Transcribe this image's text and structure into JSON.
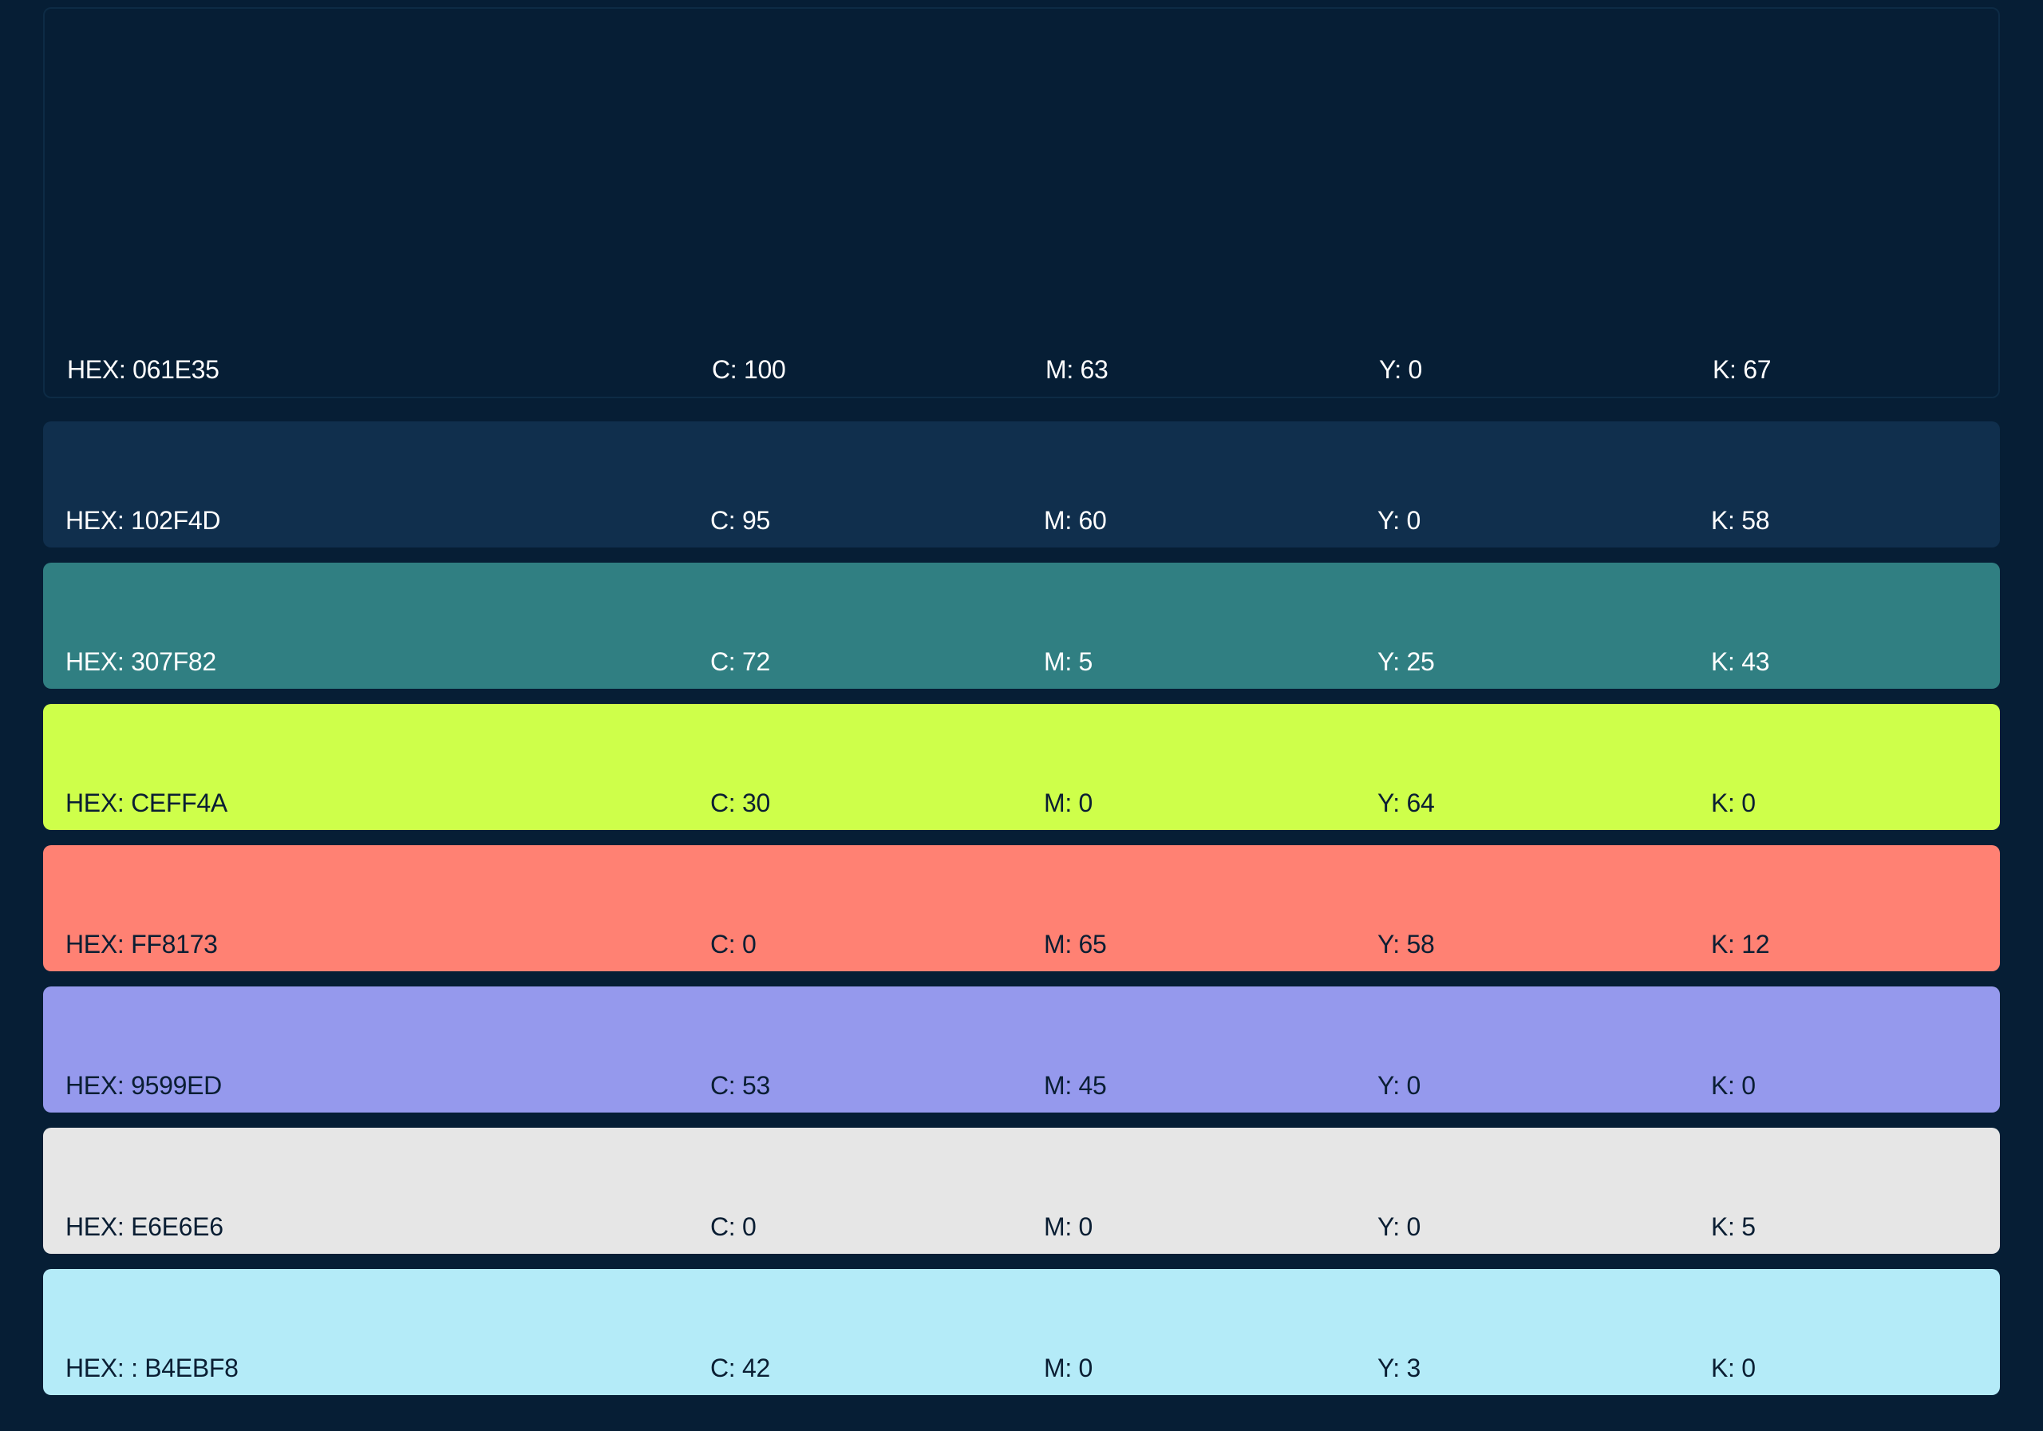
{
  "swatches": [
    {
      "color": "#061e35",
      "text_color": "#ffffff",
      "hex": "HEX: 061E35",
      "c": "C: 100",
      "m": "M: 63",
      "y": "Y: 0",
      "k": "K: 67"
    },
    {
      "color": "#102f4d",
      "text_color": "#ffffff",
      "hex": "HEX: 102F4D",
      "c": "C: 95",
      "m": "M: 60",
      "y": "Y: 0",
      "k": "K: 58"
    },
    {
      "color": "#307f82",
      "text_color": "#ffffff",
      "hex": "HEX: 307F82",
      "c": "C: 72",
      "m": "M: 5",
      "y": "Y: 25",
      "k": "K: 43"
    },
    {
      "color": "#ceff4a",
      "text_color": "#0a1e33",
      "hex": "HEX: CEFF4A",
      "c": "C: 30",
      "m": "M: 0",
      "y": "Y: 64",
      "k": "K: 0"
    },
    {
      "color": "#ff8173",
      "text_color": "#0a1e33",
      "hex": "HEX: FF8173",
      "c": "C: 0",
      "m": "M: 65",
      "y": "Y: 58",
      "k": "K: 12"
    },
    {
      "color": "#9599ed",
      "text_color": "#0a1e33",
      "hex": "HEX: 9599ED",
      "c": "C: 53",
      "m": "M: 45",
      "y": "Y: 0",
      "k": "K: 0"
    },
    {
      "color": "#e6e6e6",
      "text_color": "#0a1e33",
      "hex": "HEX: E6E6E6",
      "c": "C: 0",
      "m": "M: 0",
      "y": "Y: 0",
      "k": "K: 5"
    },
    {
      "color": "#b4ebf8",
      "text_color": "#0a1e33",
      "hex": "HEX: : B4EBF8",
      "c": "C: 42",
      "m": "M: 0",
      "y": "Y: 3",
      "k": "K: 0"
    }
  ]
}
